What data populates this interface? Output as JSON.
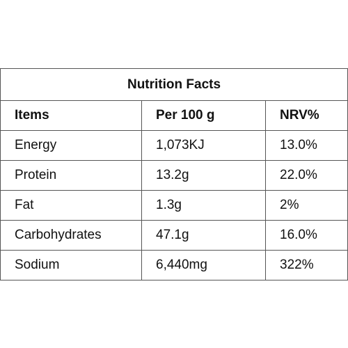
{
  "table": {
    "title": "Nutrition Facts",
    "headers": [
      "Items",
      "Per 100 g",
      "NRV%"
    ],
    "rows": [
      [
        "Energy",
        "1,073KJ",
        "13.0%"
      ],
      [
        "Protein",
        "13.2g",
        "22.0%"
      ],
      [
        "Fat",
        "1.3g",
        "2%"
      ],
      [
        "Carbohydrates",
        "47.1g",
        "16.0%"
      ],
      [
        "Sodium",
        "6,440mg",
        "322%"
      ]
    ]
  }
}
